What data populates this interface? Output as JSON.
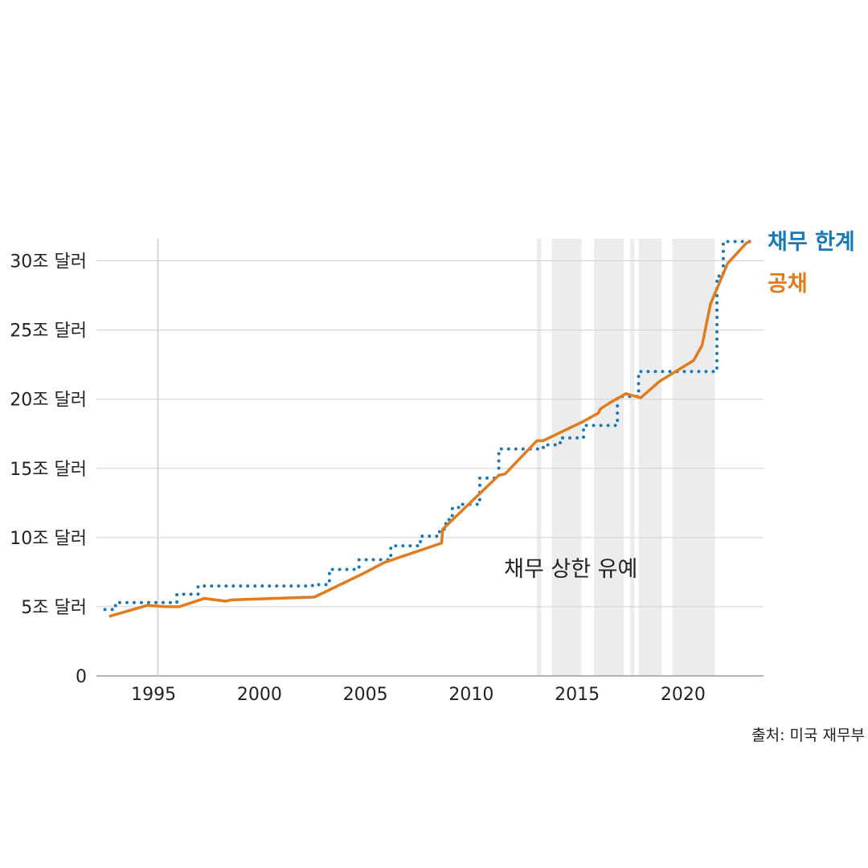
{
  "chart_data": {
    "type": "line",
    "title": "",
    "xlabel": "",
    "ylabel": "",
    "xlim": [
      1992.3,
      2023.8
    ],
    "ylim": [
      0,
      31.6
    ],
    "y_ticks": [
      {
        "value": 0,
        "label": "0"
      },
      {
        "value": 5,
        "label": "5조 달러"
      },
      {
        "value": 10,
        "label": "10조 달러"
      },
      {
        "value": 15,
        "label": "15조 달러"
      },
      {
        "value": 20,
        "label": "20조 달러"
      },
      {
        "value": 25,
        "label": "25조 달러"
      },
      {
        "value": 30,
        "label": "30조 달러"
      }
    ],
    "x_ticks": [
      {
        "value": 1995,
        "label": "1995"
      },
      {
        "value": 2000,
        "label": "2000"
      },
      {
        "value": 2005,
        "label": "2005"
      },
      {
        "value": 2010,
        "label": "2010"
      },
      {
        "value": 2015,
        "label": "2015"
      },
      {
        "value": 2020,
        "label": "2020"
      }
    ],
    "reference_line_x": 1995.2,
    "shaded_periods": [
      [
        2013.1,
        2013.3
      ],
      [
        2013.8,
        2015.2
      ],
      [
        2015.8,
        2017.2
      ],
      [
        2017.5,
        2017.7
      ],
      [
        2017.9,
        2019.0
      ],
      [
        2019.5,
        2021.5
      ]
    ],
    "shaded_label": "채무 상한 유예",
    "shaded_label_position": [
      2014.7,
      7.2
    ],
    "series": [
      {
        "name": "채무 한계",
        "color": "#1a78b4",
        "style": "dotted",
        "step": true,
        "x": [
          1992.7,
          1993.2,
          1996.1,
          1997.1,
          2002.5,
          2003.3,
          2004.7,
          2006.2,
          2007.6,
          2008.5,
          2008.8,
          2009.1,
          2009.4,
          2010.4,
          2011.3,
          2013.4,
          2014.2,
          2015.3,
          2016.9,
          2017.9,
          2021.6,
          2021.9,
          2023.2
        ],
        "values": [
          4.8,
          5.3,
          5.9,
          6.5,
          6.6,
          7.7,
          8.4,
          9.4,
          10.1,
          10.6,
          11.3,
          12.1,
          12.4,
          14.3,
          16.4,
          16.7,
          17.2,
          18.1,
          20.2,
          22.0,
          28.9,
          31.4,
          31.4
        ]
      },
      {
        "name": "공채",
        "color": "#e07b1e",
        "style": "solid",
        "step": false,
        "x": [
          1992.9,
          1994.7,
          1995.6,
          1996.2,
          1997.4,
          1998.4,
          1998.7,
          2002.6,
          2004.9,
          2005.9,
          2008.6,
          2008.65,
          2011.3,
          2011.6,
          2013.1,
          2013.4,
          2015.3,
          2016.0,
          2016.1,
          2016.5,
          2017.3,
          2018.0,
          2018.9,
          2020.5,
          2020.9,
          2021.3,
          2022.1,
          2023.0,
          2023.2
        ],
        "values": [
          4.3,
          5.1,
          5.0,
          5.0,
          5.6,
          5.4,
          5.5,
          5.7,
          7.4,
          8.2,
          9.6,
          10.6,
          14.5,
          14.6,
          17.0,
          17.0,
          18.4,
          19.0,
          19.3,
          19.7,
          20.4,
          20.1,
          21.3,
          22.8,
          23.9,
          26.9,
          29.8,
          31.3,
          31.4
        ]
      }
    ]
  },
  "legend": [
    {
      "name": "채무 한계",
      "color": "#1a78b4"
    },
    {
      "name": "공채",
      "color": "#e07b1e"
    }
  ],
  "source_label": "출처: 미국 재무부"
}
